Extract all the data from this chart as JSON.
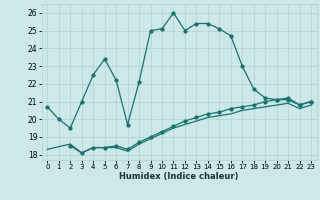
{
  "title": "",
  "xlabel": "Humidex (Indice chaleur)",
  "ylabel": "",
  "bg_color": "#cce8e8",
  "grid_color": "#b8d8d8",
  "line_color": "#1a7070",
  "ylim": [
    17.7,
    26.5
  ],
  "xlim": [
    -0.5,
    23.5
  ],
  "yticks": [
    18,
    19,
    20,
    21,
    22,
    23,
    24,
    25,
    26
  ],
  "xticks": [
    0,
    1,
    2,
    3,
    4,
    5,
    6,
    7,
    8,
    9,
    10,
    11,
    12,
    13,
    14,
    15,
    16,
    17,
    18,
    19,
    20,
    21,
    22,
    23
  ],
  "line1_x": [
    0,
    1,
    2,
    3,
    4,
    5,
    6,
    7,
    8,
    9,
    10,
    11,
    12,
    13,
    14,
    15,
    16,
    17,
    18,
    19,
    20,
    21,
    22,
    23
  ],
  "line1_y": [
    20.7,
    20.0,
    19.5,
    21.0,
    22.5,
    23.4,
    22.2,
    19.7,
    22.1,
    25.0,
    25.1,
    26.0,
    25.0,
    25.4,
    25.4,
    25.1,
    24.7,
    23.0,
    21.7,
    21.2,
    21.1,
    21.1,
    20.8,
    21.0
  ],
  "line2_x": [
    2,
    3,
    4,
    5,
    6,
    7,
    8,
    9,
    10,
    11,
    12,
    13,
    14,
    15,
    16,
    17,
    18,
    19,
    20,
    21,
    22,
    23
  ],
  "line2_y": [
    18.5,
    18.1,
    18.4,
    18.4,
    18.5,
    18.3,
    18.7,
    19.0,
    19.3,
    19.6,
    19.9,
    20.1,
    20.3,
    20.4,
    20.6,
    20.7,
    20.8,
    21.0,
    21.1,
    21.2,
    20.8,
    21.0
  ],
  "line3_x": [
    0,
    2,
    3,
    4,
    5,
    6,
    7,
    8,
    9,
    10,
    11,
    12,
    13,
    14,
    15,
    16,
    17,
    18,
    19,
    20,
    21,
    22,
    23
  ],
  "line3_y": [
    18.3,
    18.6,
    18.1,
    18.4,
    18.4,
    18.4,
    18.2,
    18.6,
    18.9,
    19.2,
    19.5,
    19.7,
    19.9,
    20.1,
    20.2,
    20.3,
    20.5,
    20.6,
    20.7,
    20.8,
    20.9,
    20.6,
    20.8
  ]
}
